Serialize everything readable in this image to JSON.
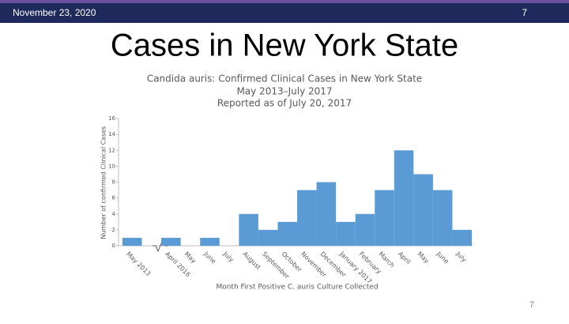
{
  "header": {
    "date": "November 23, 2020",
    "page": "7"
  },
  "slide_title": "Cases in New York State",
  "footer_page": "7",
  "chart_data": {
    "type": "bar",
    "title": "Candida auris: Confirmed Clinical Cases in New York State",
    "subtitle": "May 2013–July 2017",
    "note": "Reported as of July 20, 2017",
    "y_label": "Number of confirmed Clinical Cases",
    "x_label": "Month First Positive C. auris Culture Collected",
    "categories": [
      "May 2013",
      null,
      "April 2016",
      "May",
      "June",
      "July",
      "August",
      "September",
      "October",
      "November",
      "December",
      "January 2017",
      "February",
      "March",
      "April",
      "May",
      "June",
      "July"
    ],
    "values": [
      1,
      null,
      1,
      0,
      1,
      0,
      4,
      2,
      3,
      7,
      8,
      3,
      4,
      7,
      12,
      9,
      7,
      2
    ],
    "color": "#5b9bd5",
    "ylim": [
      0,
      16
    ],
    "yticks": [
      0,
      2,
      4,
      6,
      8,
      10,
      12,
      14,
      16
    ]
  }
}
